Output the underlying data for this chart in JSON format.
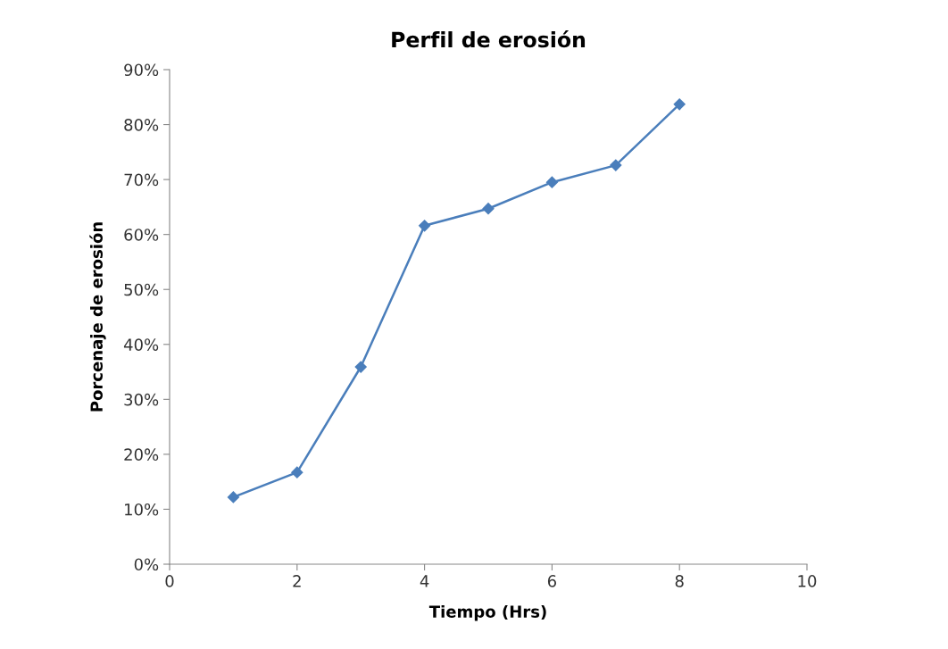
{
  "chart_data": {
    "type": "line",
    "title": "Perfil de erosión",
    "xlabel": "Tiempo (Hrs)",
    "ylabel": "Porcenaje de erosión",
    "x": [
      1,
      2,
      3,
      4,
      5,
      6,
      7,
      8
    ],
    "series": [
      {
        "color": "#4a7ebb",
        "values": [
          12.2,
          16.7,
          35.9,
          61.6,
          64.7,
          69.5,
          72.6,
          83.7
        ]
      }
    ],
    "xlim": [
      0,
      10
    ],
    "xticks": [
      0,
      2,
      4,
      6,
      8,
      10
    ],
    "ylim": [
      0,
      90
    ],
    "yticks": [
      {
        "value": 0,
        "label": "0%"
      },
      {
        "value": 10,
        "label": "10%"
      },
      {
        "value": 20,
        "label": "20%"
      },
      {
        "value": 30,
        "label": "30%"
      },
      {
        "value": 40,
        "label": "40%"
      },
      {
        "value": 50,
        "label": "50%"
      },
      {
        "value": 60,
        "label": "60%"
      },
      {
        "value": 70,
        "label": "70%"
      },
      {
        "value": 80,
        "label": "80%"
      },
      {
        "value": 90,
        "label": "90%"
      }
    ],
    "grid": false,
    "legend": false,
    "marker": "diamond",
    "line_style": "solid"
  }
}
